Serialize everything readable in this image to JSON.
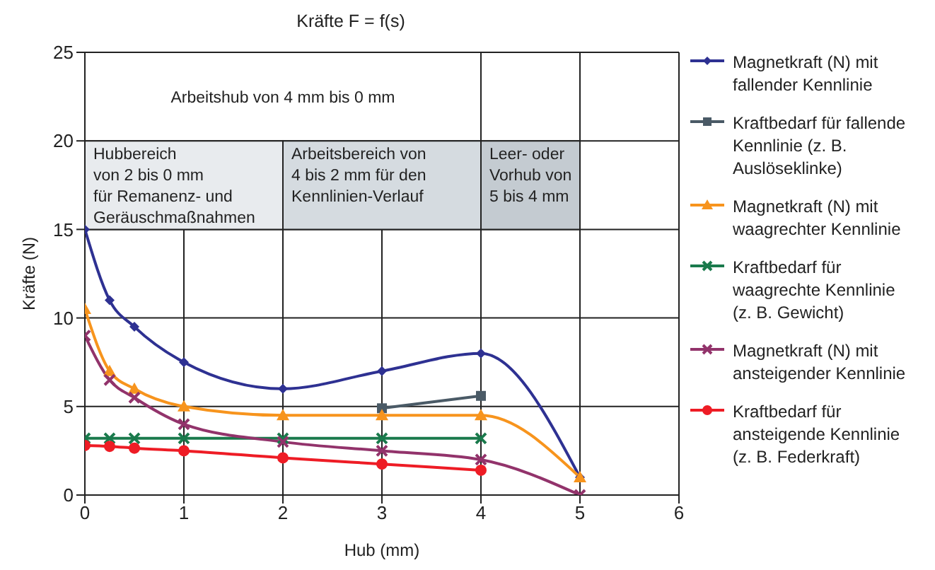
{
  "chart_data": {
    "type": "line",
    "title": "Kräfte F = f(s)",
    "xlabel": "Hub (mm)",
    "ylabel": "Kräfte (N)",
    "xlim": [
      0,
      6
    ],
    "xticks": [
      0,
      1,
      2,
      3,
      4,
      5,
      6
    ],
    "ylim": [
      0,
      25
    ],
    "yticks": [
      0,
      5,
      10,
      15,
      20,
      25
    ],
    "grid": true,
    "legend": "right",
    "bands": [
      {
        "axis": "x",
        "from": 0,
        "to": 4,
        "label": "Arbeitshub von 4 mm bis 0 mm",
        "color": "#ffffff"
      },
      {
        "axis": "x",
        "from": 0,
        "to": 2,
        "label": "Hubbereich\nvon 2 bis 0 mm\nfür Remanenz- und\nGeräuschmaßnahmen",
        "color": "#e8ebee"
      },
      {
        "axis": "x",
        "from": 2,
        "to": 4,
        "label": "Arbeitsbereich von\n4 bis 2 mm für den\nKennlinien-Verlauf",
        "color": "#d5dbe0"
      },
      {
        "axis": "x",
        "from": 4,
        "to": 5,
        "label": "Leer- oder\nVorhub von\n5 bis 4 mm",
        "color": "#c4cbd1"
      }
    ],
    "series": [
      {
        "name": "Magnetkraft (N) mit fallender Kennlinie",
        "color": "#2e3192",
        "marker": "diamond",
        "x": [
          0,
          0.25,
          0.5,
          1,
          2,
          3,
          4,
          5
        ],
        "values": [
          15,
          11,
          9.5,
          7.5,
          6,
          7,
          8,
          1
        ]
      },
      {
        "name": "Kraftbedarf für fallende Kennlinie (z. B. Auslöseklinke)",
        "color": "#4a5a66",
        "marker": "square",
        "x": [
          3,
          4
        ],
        "values": [
          4.9,
          5.6
        ]
      },
      {
        "name": "Magnetkraft (N) mit waagrechter Kennlinie",
        "color": "#f7941d",
        "marker": "triangle",
        "x": [
          0,
          0.25,
          0.5,
          1,
          2,
          3,
          4,
          5
        ],
        "values": [
          10.5,
          7,
          6,
          5,
          4.5,
          4.5,
          4.5,
          1
        ]
      },
      {
        "name": "Kraftbedarf für waagrechte Kennlinie (z. B. Gewicht)",
        "color": "#1a7a4c",
        "marker": "cross",
        "x": [
          0,
          0.25,
          0.5,
          1,
          2,
          3,
          4
        ],
        "values": [
          3.2,
          3.2,
          3.2,
          3.2,
          3.2,
          3.2,
          3.2
        ]
      },
      {
        "name": "Magnetkraft (N) mit ansteigender Kennlinie",
        "color": "#92336b",
        "marker": "cross",
        "x": [
          0,
          0.25,
          0.5,
          1,
          2,
          3,
          4,
          5
        ],
        "values": [
          9,
          6.5,
          5.5,
          4,
          3,
          2.5,
          2,
          0
        ]
      },
      {
        "name": "Kraftbedarf für ansteigende Kennlinie (z. B. Federkraft)",
        "color": "#ee1c25",
        "marker": "circle",
        "x": [
          0,
          0.25,
          0.5,
          1,
          2,
          3,
          4
        ],
        "values": [
          2.8,
          2.75,
          2.65,
          2.5,
          2.1,
          1.75,
          1.4
        ]
      }
    ]
  }
}
